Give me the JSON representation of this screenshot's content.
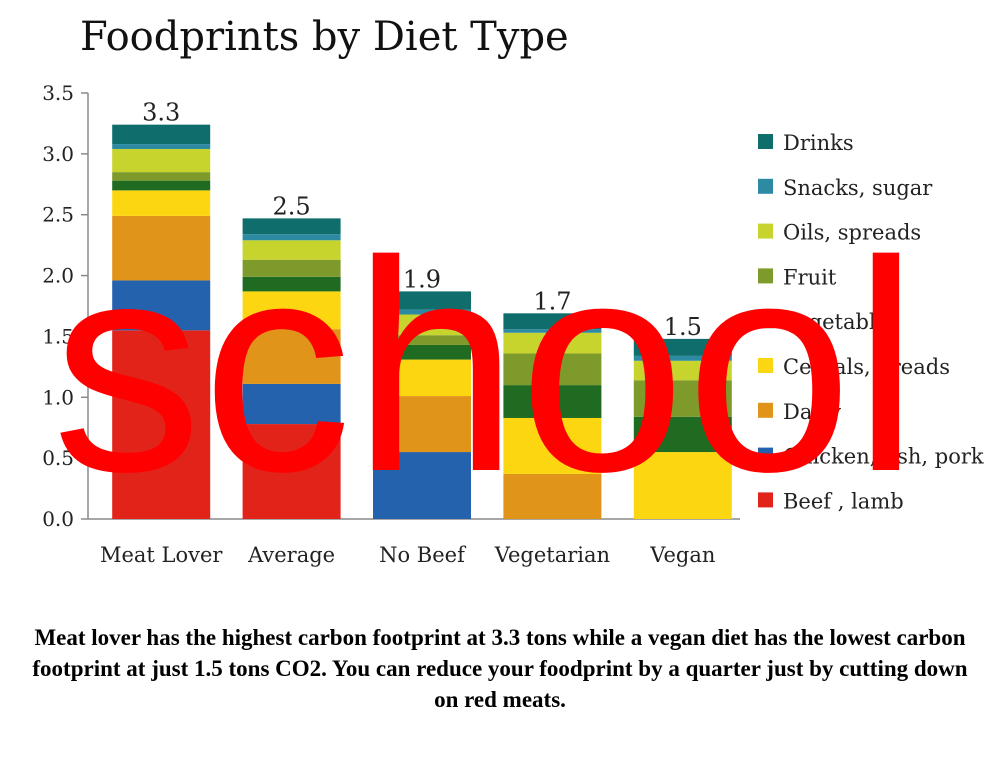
{
  "chart_data": {
    "type": "bar",
    "stacked": true,
    "title": "Foodprints by Diet Type",
    "categories": [
      "Meat Lover",
      "Average",
      "No Beef",
      "Vegetarian",
      "Vegan"
    ],
    "totals": [
      "3.3",
      "2.5",
      "1.9",
      "1.7",
      "1.5"
    ],
    "ylim": [
      0,
      3.5
    ],
    "yticks": [
      "0.0",
      "0.5",
      "1.0",
      "1.5",
      "2.0",
      "2.5",
      "3.0",
      "3.5"
    ],
    "legend_position": "right",
    "series": [
      {
        "name": "Beef , lamb",
        "color": "#e2231a",
        "values": [
          1.55,
          0.78,
          0,
          0,
          0
        ]
      },
      {
        "name": "Chicken, fish, pork",
        "color": "#2462ae",
        "values": [
          0.41,
          0.33,
          0.55,
          0,
          0
        ]
      },
      {
        "name": "Dairy",
        "color": "#e09419",
        "values": [
          0.53,
          0.45,
          0.46,
          0.37,
          0
        ]
      },
      {
        "name": "Cereals, breads",
        "color": "#fcd711",
        "values": [
          0.21,
          0.31,
          0.3,
          0.46,
          0.55
        ]
      },
      {
        "name": "Vegetables",
        "color": "#206b22",
        "values": [
          0.08,
          0.12,
          0.12,
          0.27,
          0.29
        ]
      },
      {
        "name": "Fruit",
        "color": "#7e9a2b",
        "values": [
          0.07,
          0.14,
          0.08,
          0.26,
          0.3
        ]
      },
      {
        "name": "Oils, spreads",
        "color": "#c6d42d",
        "values": [
          0.19,
          0.16,
          0.17,
          0.17,
          0.16
        ]
      },
      {
        "name": "Snacks, sugar",
        "color": "#2c8aa3",
        "values": [
          0.04,
          0.05,
          0.04,
          0.03,
          0.04
        ]
      },
      {
        "name": "Drinks",
        "color": "#0f6e6c",
        "values": [
          0.16,
          0.13,
          0.15,
          0.13,
          0.14
        ]
      }
    ]
  },
  "watermark": "school",
  "caption": "Meat lover has the highest carbon footprint at 3.3 tons while a vegan diet has the lowest carbon footprint at just 1.5 tons CO2. You can reduce your foodprint by a quarter just by cutting down on red meats."
}
